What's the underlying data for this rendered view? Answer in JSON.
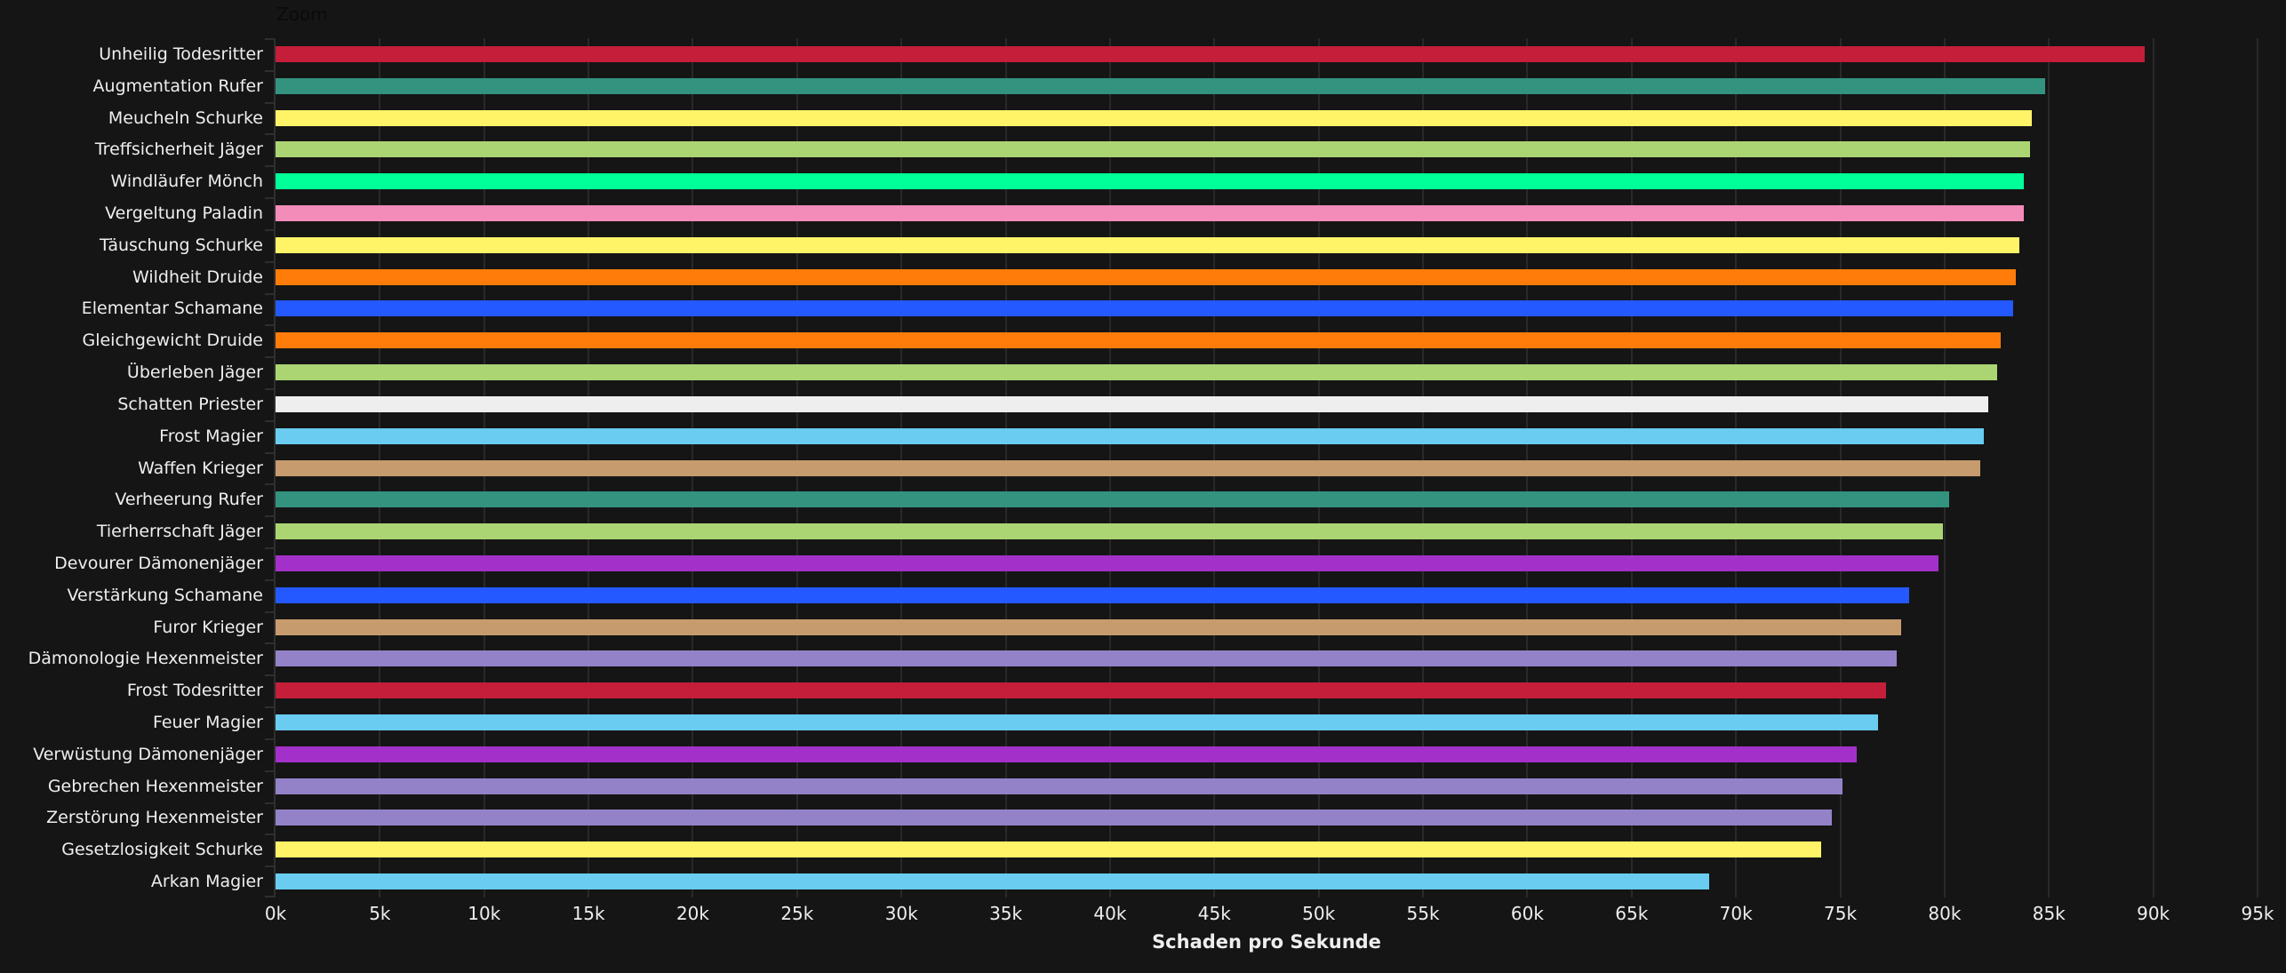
{
  "toolbar": {
    "zoom_label": "Zoom"
  },
  "chart_data": {
    "type": "bar",
    "orientation": "horizontal",
    "title": "",
    "xlabel": "Schaden pro Sekunde",
    "ylabel": "",
    "xlim": [
      0,
      95000
    ],
    "grid": true,
    "legend": "none",
    "x_ticks": [
      "0k",
      "5k",
      "10k",
      "15k",
      "20k",
      "25k",
      "30k",
      "35k",
      "40k",
      "45k",
      "50k",
      "55k",
      "60k",
      "65k",
      "70k",
      "75k",
      "80k",
      "85k",
      "90k",
      "95k"
    ],
    "categories": [
      "Unheilig Todesritter",
      "Augmentation Rufer",
      "Meucheln Schurke",
      "Treffsicherheit Jäger",
      "Windläufer Mönch",
      "Vergeltung Paladin",
      "Täuschung Schurke",
      "Wildheit Druide",
      "Elementar Schamane",
      "Gleichgewicht Druide",
      "Überleben Jäger",
      "Schatten Priester",
      "Frost Magier",
      "Waffen Krieger",
      "Verheerung Rufer",
      "Tierherrschaft Jäger",
      "Devourer Dämonenjäger",
      "Verstärkung Schamane",
      "Furor Krieger",
      "Dämonologie Hexenmeister",
      "Frost Todesritter",
      "Feuer Magier",
      "Verwüstung Dämonenjäger",
      "Gebrechen Hexenmeister",
      "Zerstörung Hexenmeister",
      "Gesetzlosigkeit Schurke",
      "Arkan Magier"
    ],
    "values": [
      89600,
      84800,
      84200,
      84100,
      83800,
      83800,
      83600,
      83400,
      83300,
      82700,
      82500,
      82100,
      81900,
      81700,
      80200,
      79900,
      79700,
      78300,
      77900,
      77700,
      77200,
      76800,
      75800,
      75100,
      74600,
      74100,
      68700
    ],
    "colors": [
      "#C41E3A",
      "#33937F",
      "#FFF468",
      "#ABD473",
      "#00FF98",
      "#F48CBA",
      "#FFF468",
      "#FF7C0A",
      "#2459FF",
      "#FF7C0A",
      "#ABD473",
      "#EEEEEE",
      "#69CCF0",
      "#C69B6D",
      "#33937F",
      "#ABD473",
      "#A330C9",
      "#2459FF",
      "#C69B6D",
      "#9482C9",
      "#C41E3A",
      "#69CCF0",
      "#A330C9",
      "#9482C9",
      "#9482C9",
      "#FFF468",
      "#69CCF0"
    ]
  },
  "colors": {
    "background": "#151515",
    "gridline": "#292929",
    "text": "#EEEEEE"
  }
}
